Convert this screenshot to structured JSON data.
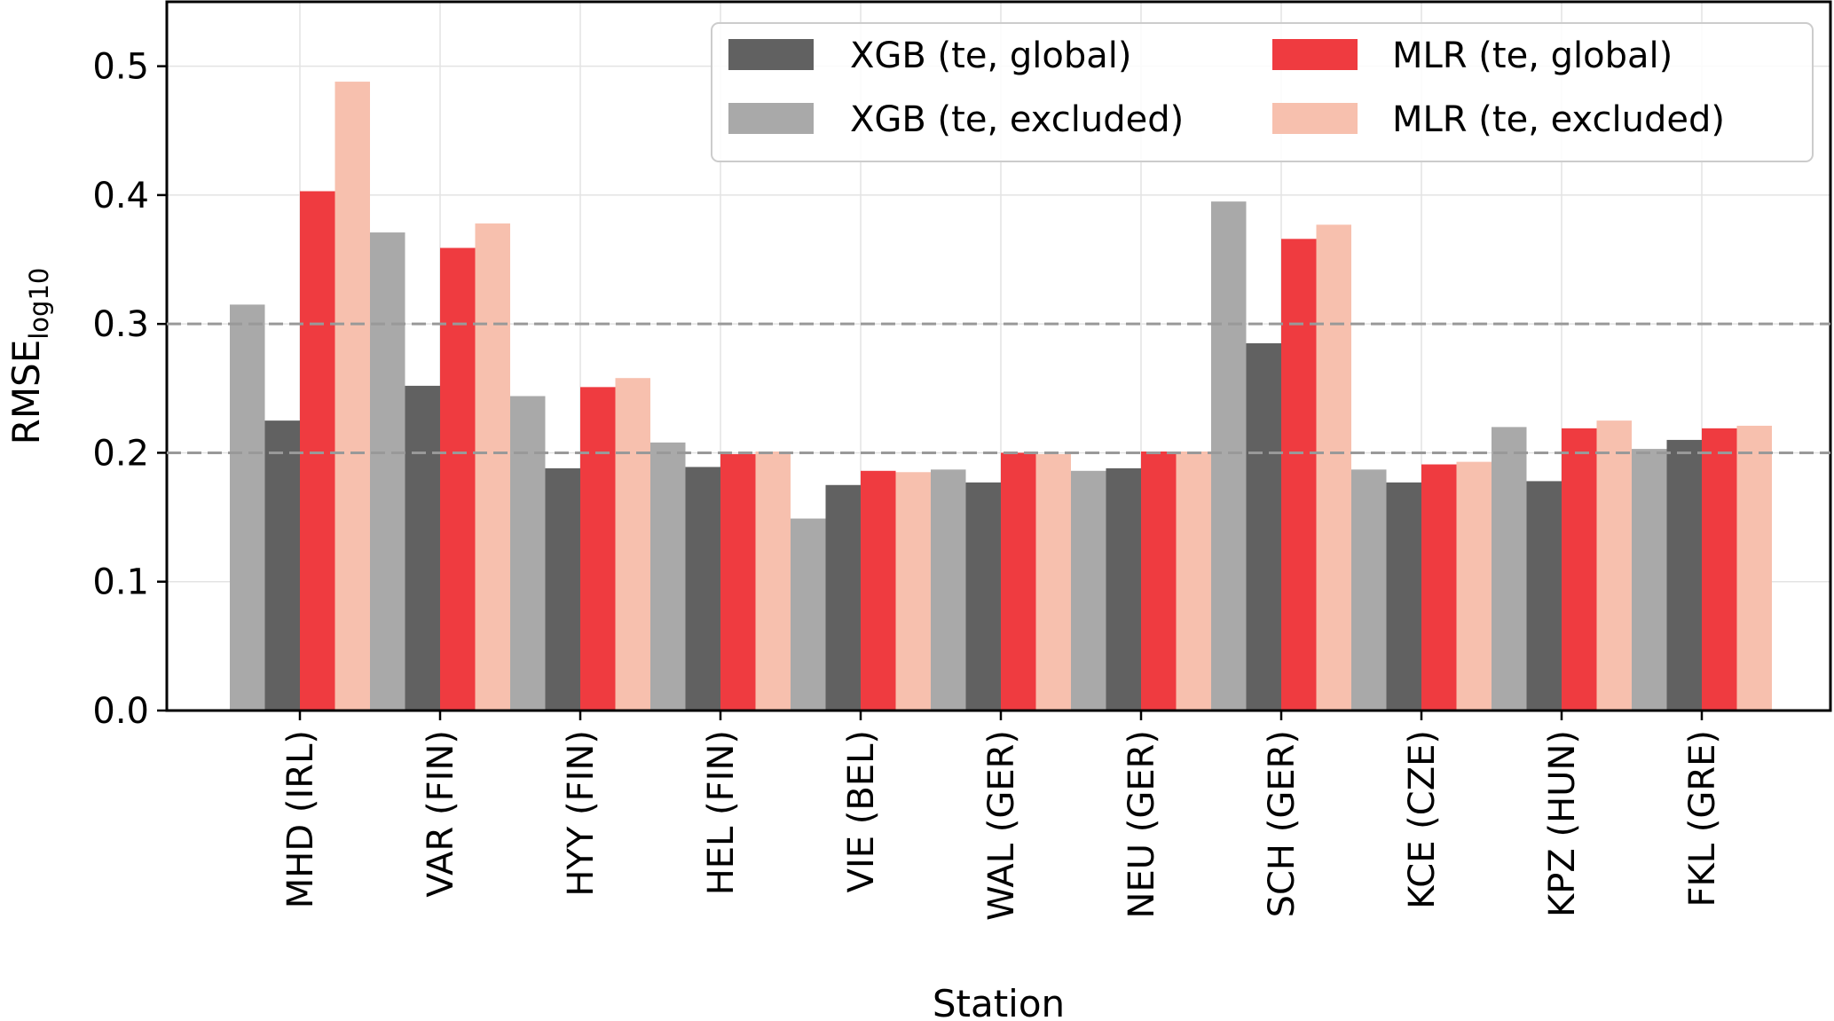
{
  "chart_data": {
    "type": "bar",
    "xlabel": "Station",
    "ylabel": "RMSE",
    "ylabel_sub": "log10",
    "ylim": [
      0,
      0.55
    ],
    "yticks": [
      0.0,
      0.1,
      0.2,
      0.3,
      0.4,
      0.5
    ],
    "ytick_labels": [
      "0.0",
      "0.1",
      "0.2",
      "0.3",
      "0.4",
      "0.5"
    ],
    "grid": true,
    "reference_lines": [
      0.2,
      0.3
    ],
    "legend_position": "top-right",
    "categories": [
      "MHD (IRL)",
      "VAR (FIN)",
      "HYY (FIN)",
      "HEL (FIN)",
      "VIE (BEL)",
      "WAL (GER)",
      "NEU (GER)",
      "SCH (GER)",
      "KCE (CZE)",
      "KPZ (HUN)",
      "FKL (GRE)"
    ],
    "series": [
      {
        "name": "XGB (te, excluded)",
        "color": "#a9a9a9",
        "values": [
          0.315,
          0.371,
          0.244,
          0.208,
          0.149,
          0.187,
          0.186,
          0.395,
          0.187,
          0.22,
          0.203
        ]
      },
      {
        "name": "XGB (te, global)",
        "color": "#616161",
        "values": [
          0.225,
          0.252,
          0.188,
          0.189,
          0.175,
          0.177,
          0.188,
          0.285,
          0.177,
          0.178,
          0.21
        ]
      },
      {
        "name": "MLR (te, global)",
        "color": "#ef3b40",
        "values": [
          0.403,
          0.359,
          0.251,
          0.199,
          0.186,
          0.2,
          0.201,
          0.366,
          0.191,
          0.219,
          0.219
        ]
      },
      {
        "name": "MLR (te, excluded)",
        "color": "#f7c0ae",
        "values": [
          0.488,
          0.378,
          0.258,
          0.201,
          0.185,
          0.199,
          0.201,
          0.377,
          0.193,
          0.225,
          0.221
        ]
      }
    ],
    "legend_order": [
      1,
      0,
      2,
      3
    ]
  }
}
